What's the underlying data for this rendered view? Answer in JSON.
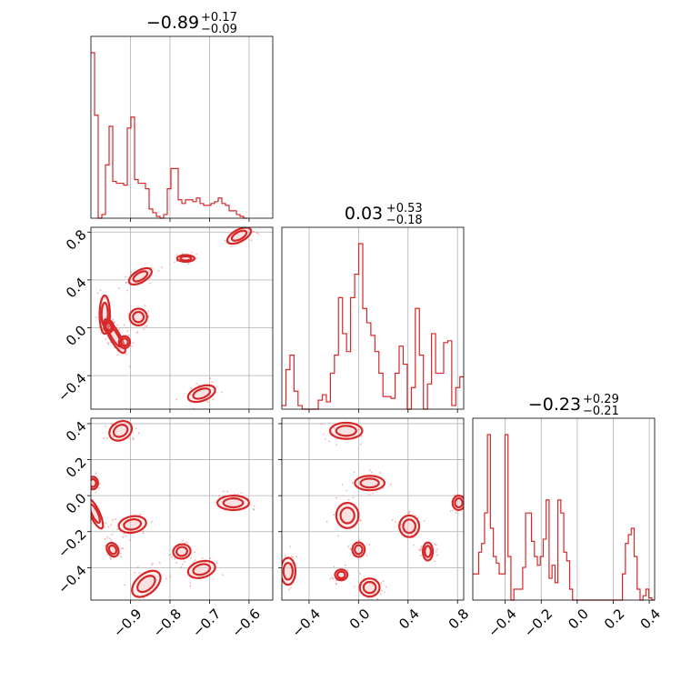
{
  "figure": {
    "type": "corner plot",
    "color": "#d62728",
    "fill_color": "#f4b6b8"
  },
  "chart_data": [
    {
      "type": "histogram",
      "panel": "hist-1",
      "title": {
        "value": "−0.89",
        "plus": "+0.17",
        "minus": "−0.09"
      },
      "xlim": [
        -1.0,
        -0.54
      ],
      "xticks": [
        -0.9,
        -0.8,
        -0.7,
        -0.6
      ],
      "tick_labels_shown": false,
      "bin_edges_start": -1.0,
      "bin_width": 0.0092,
      "heights": [
        0.9,
        0.56,
        0.0,
        0.02,
        0.29,
        0.5,
        0.2,
        0.19,
        0.19,
        0.18,
        0.49,
        0.55,
        0.21,
        0.19,
        0.19,
        0.16,
        0.05,
        0.03,
        0.01,
        0.0,
        0.02,
        0.16,
        0.27,
        0.27,
        0.1,
        0.08,
        0.1,
        0.1,
        0.09,
        0.11,
        0.08,
        0.07,
        0.07,
        0.08,
        0.09,
        0.11,
        0.08,
        0.07,
        0.04,
        0.04,
        0.02,
        0.01,
        0.0
      ]
    },
    {
      "type": "histogram",
      "panel": "hist-2",
      "title": {
        "value": "0.03",
        "plus": "+0.53",
        "minus": "−0.18"
      },
      "xlim": [
        -0.62,
        0.85
      ],
      "xticks": [
        -0.4,
        0.0,
        0.4,
        0.8
      ],
      "tick_labels_shown": false,
      "bin_edges_start": -0.62,
      "bin_width": 0.0327,
      "heights": [
        0.02,
        0.22,
        0.3,
        0.1,
        0.02,
        0.0,
        0.0,
        0.0,
        0.0,
        0.05,
        0.08,
        0.04,
        0.2,
        0.3,
        0.62,
        0.42,
        0.32,
        0.62,
        0.75,
        0.92,
        0.56,
        0.48,
        0.41,
        0.32,
        0.2,
        0.07,
        0.07,
        0.06,
        0.2,
        0.35,
        0.25,
        0.0,
        0.12,
        0.56,
        0.3,
        0.0,
        0.14,
        0.42,
        0.2,
        0.2,
        0.37,
        0.38,
        0.02,
        0.12,
        0.18
      ]
    },
    {
      "type": "histogram",
      "panel": "hist-3",
      "title": {
        "value": "−0.23",
        "plus": "+0.29",
        "minus": "−0.21"
      },
      "xlim": [
        -0.58,
        0.43
      ],
      "xticks": [
        -0.4,
        -0.2,
        0.0,
        0.2,
        0.4
      ],
      "tick_labels": [
        "−0.4",
        "−0.2",
        "0.0",
        "0.2",
        "0.4"
      ],
      "bin_edges_start": -0.58,
      "bin_width": 0.0163,
      "heights": [
        0.12,
        0.12,
        0.22,
        0.26,
        0.4,
        0.76,
        0.33,
        0.2,
        0.17,
        0.12,
        0.12,
        0.76,
        0.2,
        0.0,
        0.05,
        0.05,
        0.05,
        0.15,
        0.4,
        0.4,
        0.27,
        0.2,
        0.16,
        0.2,
        0.28,
        0.46,
        0.1,
        0.16,
        0.08,
        0.46,
        0.4,
        0.22,
        0.18,
        0.05,
        0.0,
        0.0,
        0.0,
        0.0,
        0.0,
        0.0,
        0.0,
        0.0,
        0.0,
        0.0,
        0.0,
        0.0,
        0.0,
        0.0,
        0.0,
        0.0,
        0.0,
        0.12,
        0.26,
        0.3,
        0.33,
        0.2,
        0.05,
        0.0,
        0.02,
        0.05,
        0.01,
        0.0
      ]
    },
    {
      "type": "contour",
      "panel": "scatter-2-1",
      "xlim": [
        -1.0,
        -0.54
      ],
      "ylim": [
        -0.68,
        0.84
      ],
      "yticks": [
        -0.4,
        0.0,
        0.4,
        0.8
      ],
      "ytick_labels": [
        "−0.4",
        "0.0",
        "0.4",
        "0.8"
      ],
      "blobs": [
        {
          "x": -0.625,
          "y": 0.77,
          "rx": 0.033,
          "ry": 0.05,
          "angle": -28
        },
        {
          "x": -0.76,
          "y": 0.58,
          "rx": 0.022,
          "ry": 0.028,
          "angle": 0
        },
        {
          "x": -0.875,
          "y": 0.43,
          "rx": 0.032,
          "ry": 0.05,
          "angle": -30
        },
        {
          "x": -0.965,
          "y": 0.11,
          "rx": 0.013,
          "ry": 0.16,
          "angle": 0
        },
        {
          "x": -0.94,
          "y": -0.07,
          "rx": 0.013,
          "ry": 0.16,
          "angle": -30
        },
        {
          "x": -0.955,
          "y": 0.01,
          "rx": 0.012,
          "ry": 0.05,
          "angle": 0
        },
        {
          "x": -0.88,
          "y": 0.09,
          "rx": 0.022,
          "ry": 0.07,
          "angle": 0
        },
        {
          "x": -0.915,
          "y": -0.12,
          "rx": 0.014,
          "ry": 0.05,
          "angle": 0
        },
        {
          "x": -0.72,
          "y": -0.55,
          "rx": 0.036,
          "ry": 0.06,
          "angle": -20
        }
      ]
    },
    {
      "type": "contour",
      "panel": "scatter-3-1",
      "xlim": [
        -1.0,
        -0.54
      ],
      "ylim": [
        -0.58,
        0.43
      ],
      "yticks": [
        -0.4,
        -0.2,
        0.0,
        0.2,
        0.4
      ],
      "ytick_labels": [
        "−0.4",
        "−0.2",
        "0.0",
        "0.2",
        "0.4"
      ],
      "xticks": [
        -0.9,
        -0.8,
        -0.7,
        -0.6
      ],
      "xtick_labels": [
        "−0.9",
        "−0.8",
        "−0.7",
        "−0.6"
      ],
      "blobs": [
        {
          "x": -0.925,
          "y": 0.36,
          "rx": 0.03,
          "ry": 0.05,
          "angle": -30
        },
        {
          "x": -0.995,
          "y": 0.07,
          "rx": 0.013,
          "ry": 0.035,
          "angle": 0
        },
        {
          "x": -0.99,
          "y": -0.1,
          "rx": 0.012,
          "ry": 0.09,
          "angle": -25
        },
        {
          "x": -0.895,
          "y": -0.16,
          "rx": 0.035,
          "ry": 0.045,
          "angle": -10
        },
        {
          "x": -0.945,
          "y": -0.3,
          "rx": 0.014,
          "ry": 0.04,
          "angle": -30
        },
        {
          "x": -0.77,
          "y": -0.31,
          "rx": 0.022,
          "ry": 0.04,
          "angle": -10
        },
        {
          "x": -0.72,
          "y": -0.41,
          "rx": 0.035,
          "ry": 0.045,
          "angle": -15
        },
        {
          "x": -0.86,
          "y": -0.49,
          "rx": 0.042,
          "ry": 0.055,
          "angle": -40
        },
        {
          "x": -0.64,
          "y": -0.04,
          "rx": 0.04,
          "ry": 0.04,
          "angle": 0
        }
      ]
    },
    {
      "type": "contour",
      "panel": "scatter-3-2",
      "xlim": [
        -0.62,
        0.85
      ],
      "ylim": [
        -0.58,
        0.43
      ],
      "xticks": [
        -0.4,
        0.0,
        0.4,
        0.8
      ],
      "xtick_labels": [
        "−0.4",
        "0.0",
        "0.4",
        "0.8"
      ],
      "blobs": [
        {
          "x": -0.1,
          "y": 0.36,
          "rx": 0.13,
          "ry": 0.045,
          "angle": 0
        },
        {
          "x": 0.09,
          "y": 0.07,
          "rx": 0.12,
          "ry": 0.04,
          "angle": 0
        },
        {
          "x": -0.09,
          "y": -0.11,
          "rx": 0.09,
          "ry": 0.07,
          "angle": 0
        },
        {
          "x": 0.41,
          "y": -0.17,
          "rx": 0.08,
          "ry": 0.06,
          "angle": 0
        },
        {
          "x": 0.81,
          "y": -0.04,
          "rx": 0.05,
          "ry": 0.04,
          "angle": 0
        },
        {
          "x": 0.0,
          "y": -0.3,
          "rx": 0.05,
          "ry": 0.04,
          "angle": 0
        },
        {
          "x": 0.56,
          "y": -0.31,
          "rx": 0.04,
          "ry": 0.05,
          "angle": 0
        },
        {
          "x": -0.57,
          "y": -0.42,
          "rx": 0.06,
          "ry": 0.075,
          "angle": 0
        },
        {
          "x": -0.14,
          "y": -0.44,
          "rx": 0.05,
          "ry": 0.03,
          "angle": 0
        },
        {
          "x": 0.09,
          "y": -0.51,
          "rx": 0.08,
          "ry": 0.05,
          "angle": 0
        }
      ]
    }
  ]
}
